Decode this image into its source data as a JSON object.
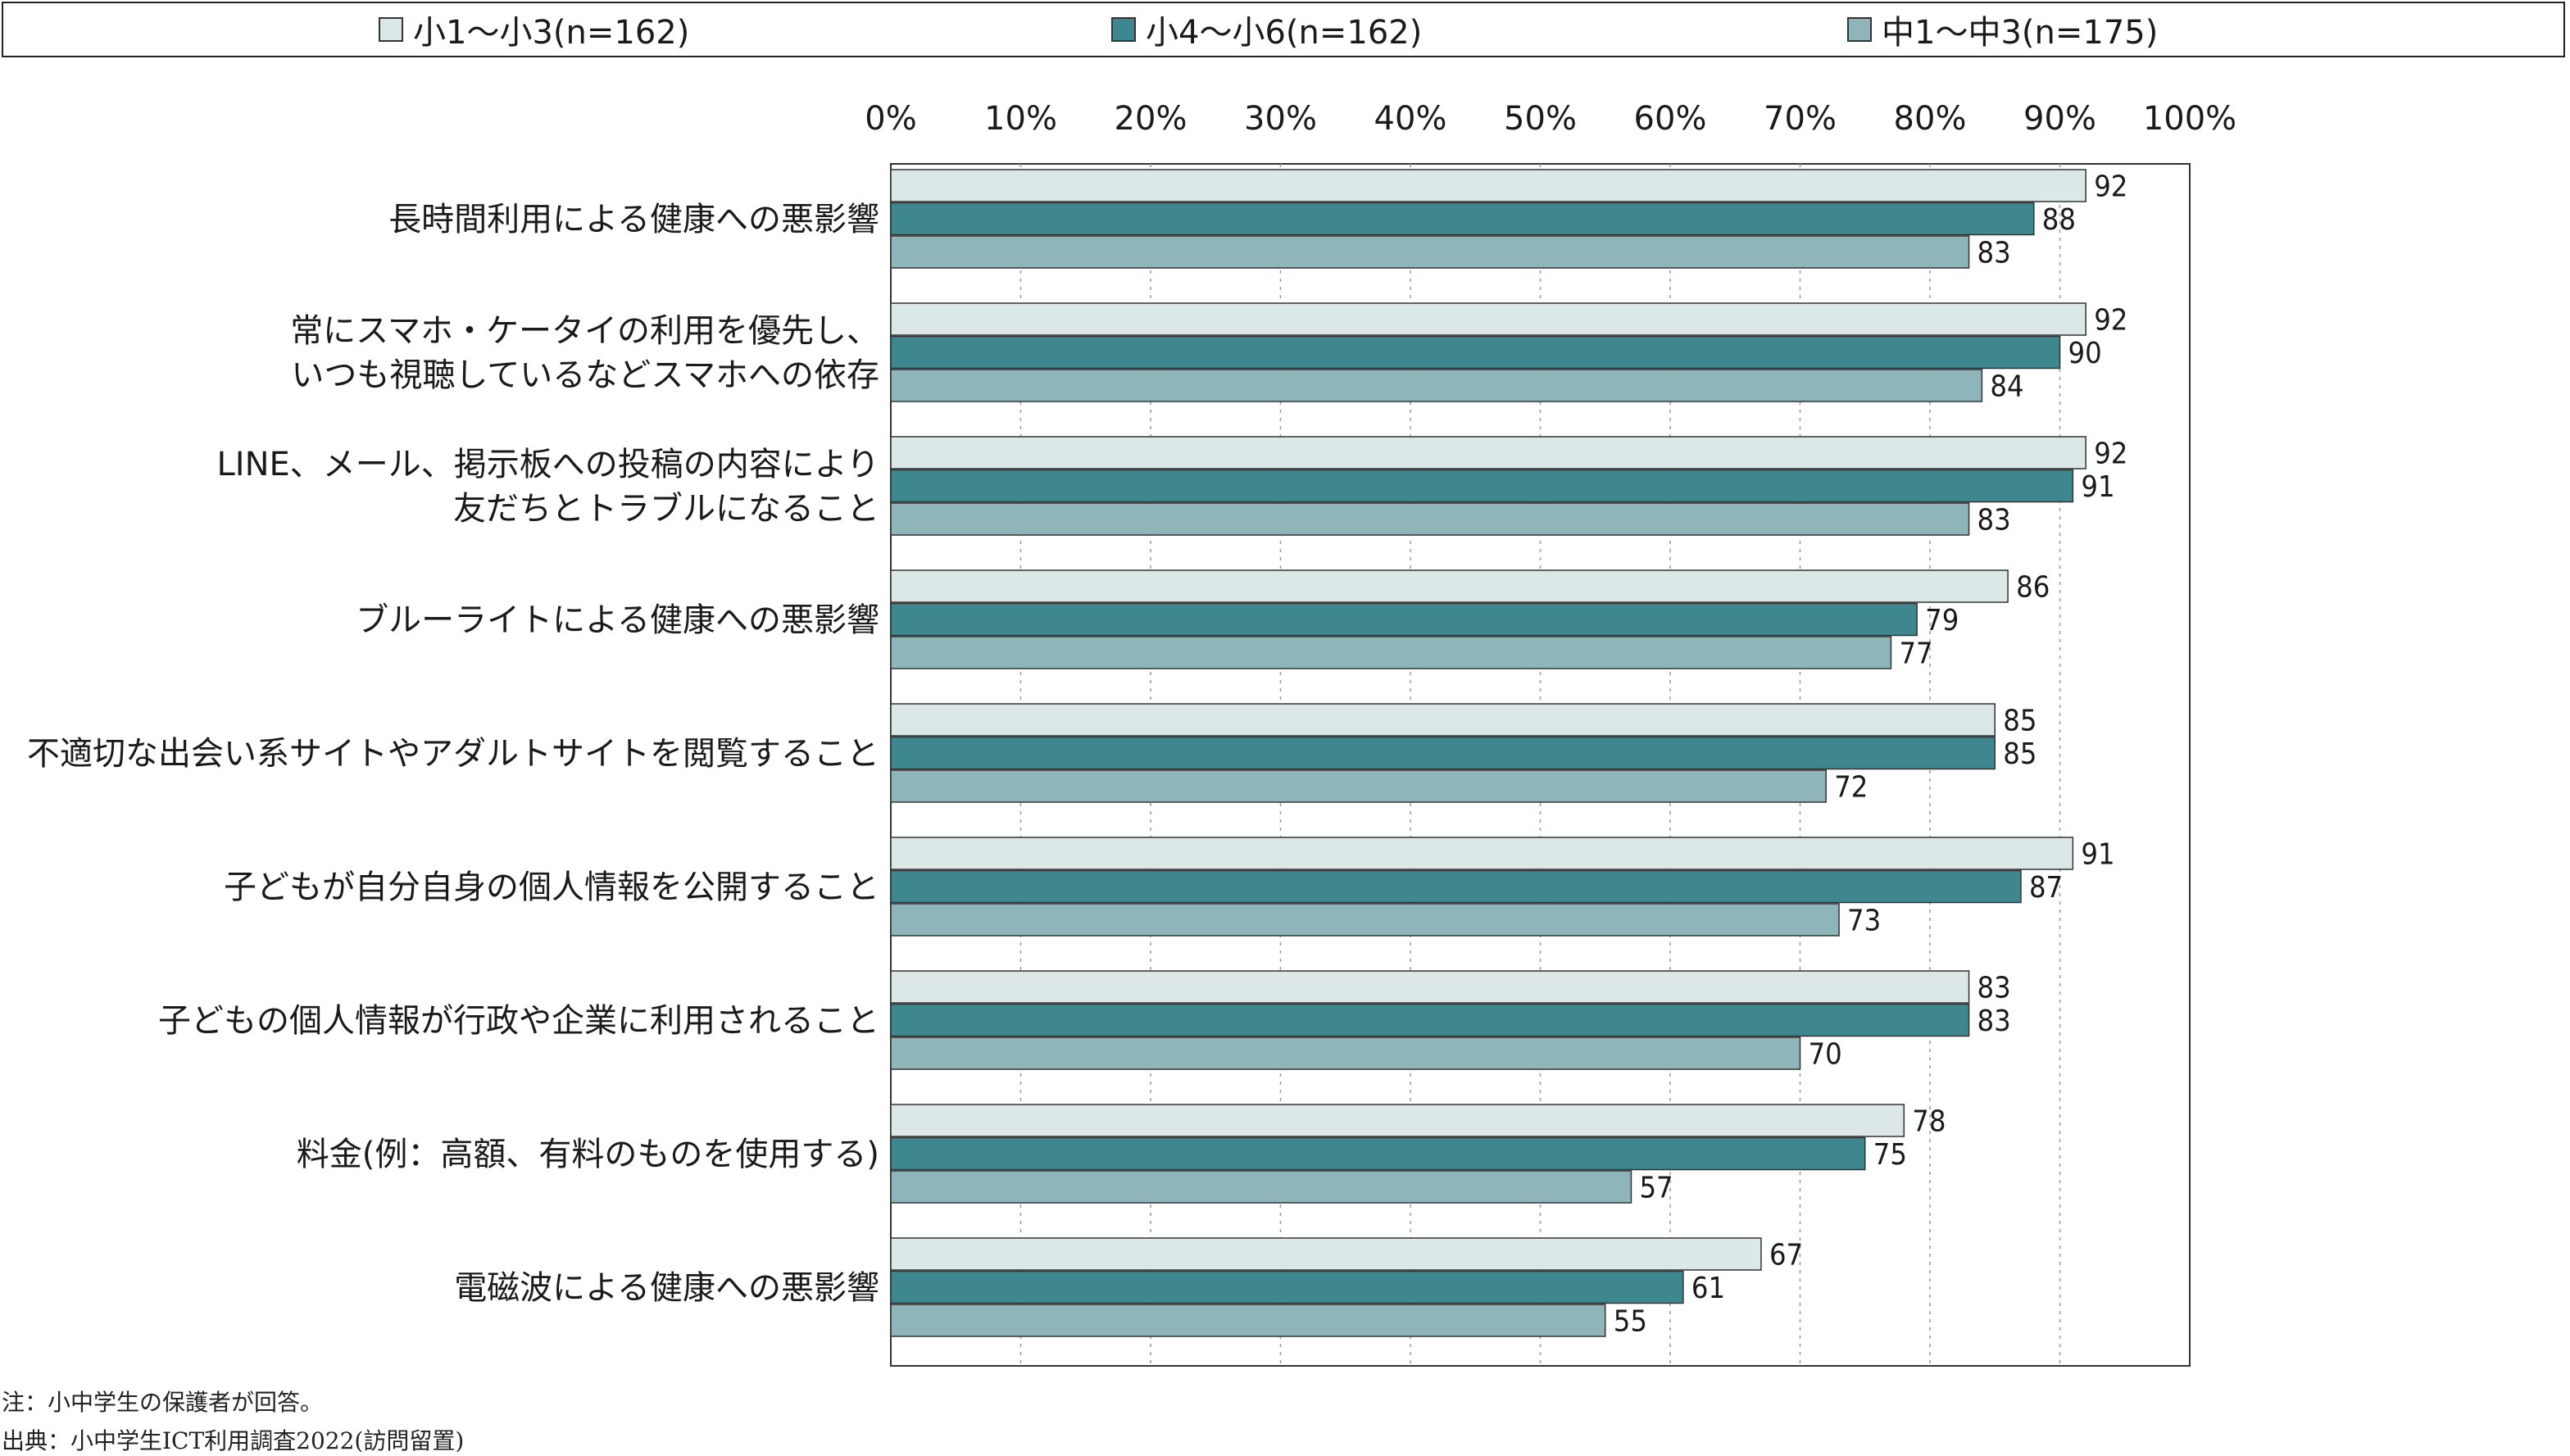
{
  "legend": [
    {
      "label": "小1〜小3(n=162)",
      "color": "#dce8e8"
    },
    {
      "label": "小4〜小6(n=162)",
      "color": "#3f878f"
    },
    {
      "label": "中1〜中3(n=175)",
      "color": "#8db5ba"
    }
  ],
  "notes": {
    "note": "注：小中学生の保護者が回答。",
    "source": "出典：小中学生ICT利用調査2022(訪問留置)"
  },
  "chart_data": {
    "type": "bar",
    "orientation": "horizontal",
    "xlim": [
      0,
      100
    ],
    "ticks": [
      "0%",
      "10%",
      "20%",
      "30%",
      "40%",
      "50%",
      "60%",
      "70%",
      "80%",
      "90%",
      "100%"
    ],
    "grid": true,
    "legend_position": "top",
    "categories": [
      [
        "長時間利用による健康への悪影響"
      ],
      [
        "常にスマホ・ケータイの利用を優先し、",
        "いつも視聴しているなどスマホへの依存"
      ],
      [
        "LINE、メール、掲示板への投稿の内容により",
        "友だちとトラブルになること"
      ],
      [
        "ブルーライトによる健康への悪影響"
      ],
      [
        "不適切な出会い系サイトやアダルトサイトを閲覧すること"
      ],
      [
        "子どもが自分自身の個人情報を公開すること"
      ],
      [
        "子どもの個人情報が行政や企業に利用されること"
      ],
      [
        "料金(例：高額、有料のものを使用する)"
      ],
      [
        "電磁波による健康への悪影響"
      ]
    ],
    "series": [
      {
        "name": "小1〜小3(n=162)",
        "color": "#dce8e8",
        "values": [
          92,
          92,
          92,
          86,
          85,
          91,
          83,
          78,
          67
        ]
      },
      {
        "name": "小4〜小6(n=162)",
        "color": "#3f878f",
        "values": [
          88,
          90,
          91,
          79,
          85,
          87,
          83,
          75,
          61
        ]
      },
      {
        "name": "中1〜中3(n=175)",
        "color": "#8db5ba",
        "values": [
          83,
          84,
          83,
          77,
          72,
          73,
          70,
          57,
          55
        ]
      }
    ]
  }
}
